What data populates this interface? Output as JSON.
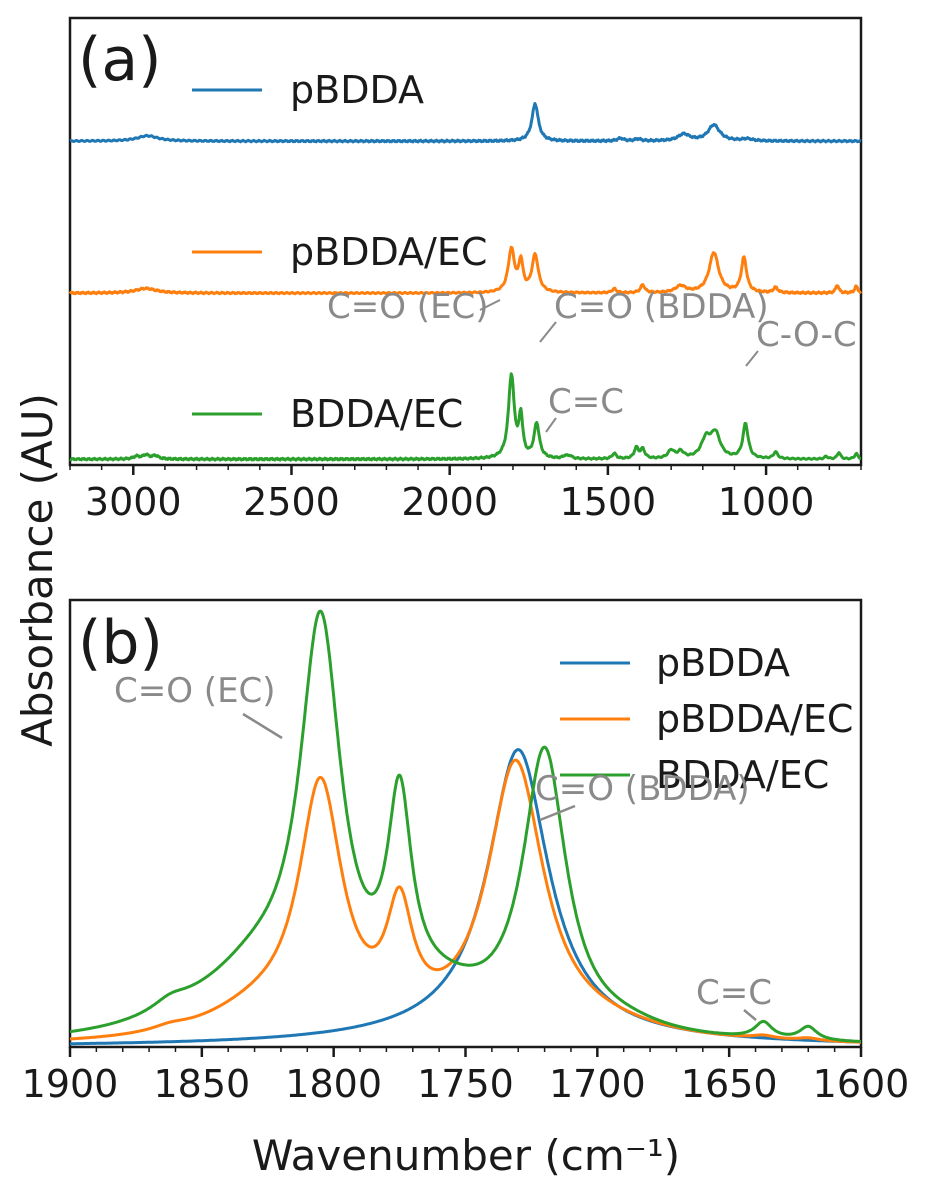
{
  "colors": {
    "pBDDA": "#1f77b4",
    "pBDDA/EC": "#ff7f0e",
    "BDDA/EC": "#2ca02c",
    "annotation": "#8a8a8a",
    "axis": "#1a1a1a"
  },
  "y_label": "Absorbance (AU)",
  "chart_data": [
    {
      "id": "a",
      "type": "line",
      "panel_label": "(a)",
      "xlabel": "",
      "ylabel": "Absorbance (AU)",
      "x_reversed": true,
      "xlim": [
        3200,
        700
      ],
      "xticks": [
        3000,
        2500,
        2000,
        1500,
        1000
      ],
      "tick_labels": [
        "3000",
        "2500",
        "2000",
        "1500",
        "1000"
      ],
      "stacked_offsets": true,
      "series": [
        {
          "name": "pBDDA",
          "offset": 0.72,
          "baseline": 0.015,
          "peaks": [
            [
              2955,
              40,
              0.04
            ],
            [
              1730,
              12,
              0.28
            ],
            [
              1460,
              12,
              0.02
            ],
            [
              1405,
              12,
              0.015
            ],
            [
              1260,
              22,
              0.05
            ],
            [
              1165,
              22,
              0.12
            ],
            [
              1060,
              20,
              0.015
            ]
          ]
        },
        {
          "name": "pBDDA/EC",
          "offset": 0.38,
          "baseline": 0.015,
          "peaks": [
            [
              2960,
              40,
              0.035
            ],
            [
              1805,
              12,
              0.32
            ],
            [
              1775,
              8,
              0.22
            ],
            [
              1730,
              12,
              0.28
            ],
            [
              1480,
              8,
              0.03
            ],
            [
              1390,
              8,
              0.06
            ],
            [
              1270,
              20,
              0.05
            ],
            [
              1165,
              18,
              0.3
            ],
            [
              1070,
              10,
              0.26
            ],
            [
              970,
              8,
              0.04
            ],
            [
              775,
              6,
              0.06
            ],
            [
              715,
              6,
              0.05
            ]
          ]
        },
        {
          "name": "BDDA/EC",
          "offset": 0.01,
          "baseline": 0.01,
          "peaks": [
            [
              2990,
              12,
              0.02
            ],
            [
              2960,
              12,
              0.03
            ],
            [
              2930,
              12,
              0.025
            ],
            [
              1805,
              11,
              0.62
            ],
            [
              1775,
              7,
              0.3
            ],
            [
              1725,
              10,
              0.26
            ],
            [
              1635,
              8,
              0.02
            ],
            [
              1620,
              8,
              0.02
            ],
            [
              1480,
              8,
              0.04
            ],
            [
              1410,
              8,
              0.08
            ],
            [
              1390,
              8,
              0.07
            ],
            [
              1300,
              12,
              0.06
            ],
            [
              1270,
              12,
              0.05
            ],
            [
              1190,
              18,
              0.14
            ],
            [
              1160,
              18,
              0.18
            ],
            [
              1065,
              10,
              0.26
            ],
            [
              970,
              8,
              0.05
            ],
            [
              810,
              6,
              0.02
            ],
            [
              770,
              6,
              0.05
            ],
            [
              715,
              6,
              0.04
            ]
          ]
        }
      ],
      "legend": [
        "pBDDA",
        "pBDDA/EC",
        "BDDA/EC"
      ],
      "legend_placement": "inline-left",
      "annotations": [
        {
          "text": "C=O (EC)",
          "x": 1805
        },
        {
          "text": "C=O (BDDA)",
          "x": 1725
        },
        {
          "text": "C=C",
          "x": 1635
        },
        {
          "text": "C-O-C",
          "x": 1065
        }
      ]
    },
    {
      "id": "b",
      "type": "line",
      "panel_label": "(b)",
      "xlabel": "Wavenumber (cm⁻¹)",
      "ylabel": "Absorbance (AU)",
      "x_reversed": true,
      "xlim": [
        1900,
        1600
      ],
      "xticks": [
        1900,
        1850,
        1800,
        1750,
        1700,
        1650,
        1600
      ],
      "tick_labels": [
        "1900",
        "1850",
        "1800",
        "1750",
        "1700",
        "1650",
        "1600"
      ],
      "series": [
        {
          "name": "pBDDA",
          "peaks": [
            [
              1730,
              14,
              0.535
            ],
            [
              1740,
              60,
              0.02
            ]
          ]
        },
        {
          "name": "pBDDA/EC",
          "peaks": [
            [
              1862,
              8,
              0.008
            ],
            [
              1805,
              10,
              0.45
            ],
            [
              1775,
              6,
              0.2
            ],
            [
              1828,
              26,
              0.05
            ],
            [
              1731,
              13,
              0.51
            ],
            [
              1700,
              30,
              0.02
            ],
            [
              1637,
              5,
              0.006
            ],
            [
              1620,
              5,
              0.005
            ]
          ]
        },
        {
          "name": "BDDA/EC",
          "peaks": [
            [
              1862,
              8,
              0.018
            ],
            [
              1850,
              30,
              0.025
            ],
            [
              1805,
              9.5,
              0.72
            ],
            [
              1775,
              5.5,
              0.36
            ],
            [
              1828,
              24,
              0.1
            ],
            [
              1760,
              24,
              0.06
            ],
            [
              1720,
              10,
              0.52
            ],
            [
              1690,
              20,
              0.015
            ],
            [
              1637,
              4,
              0.03
            ],
            [
              1620,
              4,
              0.025
            ]
          ]
        }
      ],
      "legend": [
        "pBDDA",
        "pBDDA/EC",
        "BDDA/EC"
      ],
      "legend_placement": "top-right",
      "annotations": [
        {
          "text": "C=O (EC)",
          "x": 1803
        },
        {
          "text": "C=O (BDDA)",
          "x": 1722
        },
        {
          "text": "C=C",
          "x": 1637
        }
      ]
    }
  ]
}
